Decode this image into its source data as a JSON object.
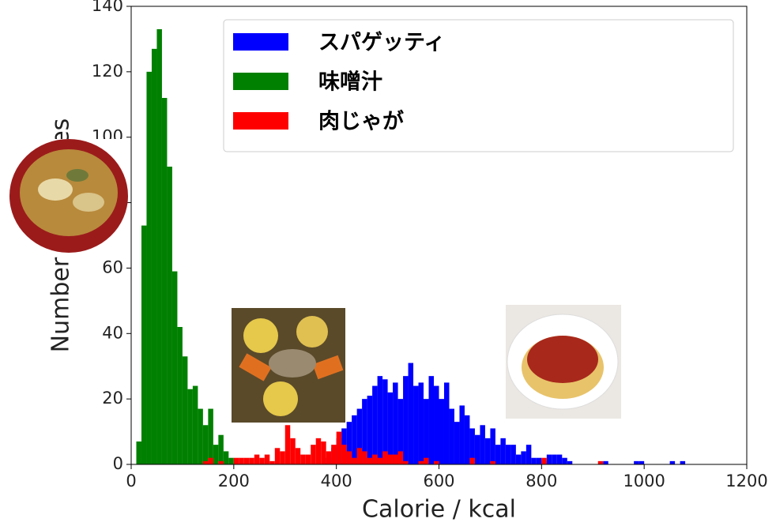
{
  "chart_data": {
    "type": "histogram",
    "x_label": "Calorie / kcal",
    "y_label": "Number of Samples",
    "bins": [
      0,
      10,
      20,
      30,
      40,
      50,
      60,
      70,
      80,
      90,
      100,
      110,
      120,
      130,
      140,
      150,
      160,
      170,
      180,
      190,
      200,
      210,
      220,
      230,
      240,
      250,
      260,
      270,
      280,
      290,
      300,
      310,
      320,
      330,
      340,
      350,
      360,
      370,
      380,
      390,
      400,
      410,
      420,
      430,
      440,
      450,
      460,
      470,
      480,
      490,
      500,
      510,
      520,
      530,
      540,
      550,
      560,
      570,
      580,
      590,
      600,
      610,
      620,
      630,
      640,
      650,
      660,
      670,
      680,
      690,
      700,
      710,
      720,
      730,
      740,
      750,
      760,
      770,
      780,
      790,
      800,
      810,
      820,
      830,
      840,
      850,
      860,
      870,
      880,
      890,
      900,
      910,
      920,
      930,
      940,
      950,
      960,
      970,
      980,
      990,
      1000,
      1010,
      1020,
      1030,
      1040,
      1050,
      1060,
      1070,
      1080,
      1090,
      1100
    ],
    "series": [
      {
        "name": "スパゲッティ",
        "color": "#0000ff",
        "values": [
          0,
          0,
          0,
          0,
          0,
          0,
          0,
          0,
          0,
          0,
          0,
          0,
          0,
          0,
          0,
          0,
          0,
          0,
          0,
          0,
          0,
          0,
          0,
          0,
          0,
          0,
          0,
          0,
          0,
          0,
          0,
          0,
          0,
          0,
          0,
          0,
          0,
          0,
          2,
          5,
          8,
          11,
          13,
          15,
          17,
          20,
          21,
          24,
          27,
          26,
          22,
          25,
          20,
          27,
          31,
          24,
          25,
          20,
          27,
          24,
          20,
          25,
          17,
          13,
          18,
          15,
          11,
          9,
          12,
          8,
          11,
          6,
          8,
          6,
          6,
          3,
          4,
          6,
          2,
          2,
          1,
          3,
          3,
          3,
          2,
          1,
          0,
          0,
          0,
          0,
          0,
          0,
          1,
          0,
          0,
          0,
          0,
          0,
          1,
          1,
          0,
          0,
          0,
          0,
          0,
          1,
          0,
          1,
          0,
          0
        ]
      },
      {
        "name": "味噌汁",
        "color": "#008000",
        "values": [
          0,
          7,
          73,
          120,
          127,
          133,
          112,
          91,
          59,
          42,
          33,
          23,
          24,
          17,
          12,
          17,
          6,
          9,
          4,
          2,
          0,
          0,
          0,
          0,
          0,
          0,
          0,
          0,
          0,
          0,
          0,
          0,
          0,
          0,
          0,
          0,
          0,
          0,
          0,
          0,
          0,
          0,
          0,
          0,
          0,
          0,
          0,
          0,
          0,
          0,
          0,
          0,
          0,
          0,
          0,
          0,
          0,
          0,
          0,
          0,
          0,
          0,
          0,
          0,
          0,
          0,
          0,
          0,
          0,
          0,
          0,
          0,
          0,
          0,
          0,
          0,
          0,
          0,
          0,
          0,
          0,
          0,
          0,
          0,
          0,
          0,
          0,
          0,
          0,
          0,
          0,
          0,
          0,
          0,
          0,
          0,
          0,
          0,
          0,
          0,
          0,
          0,
          0,
          0,
          0,
          0,
          0,
          0,
          0,
          0
        ]
      },
      {
        "name": "肉じゃが",
        "color": "#ff0000",
        "values": [
          0,
          0,
          0,
          0,
          0,
          0,
          0,
          0,
          0,
          0,
          0,
          0,
          0,
          0,
          1,
          2,
          0,
          1,
          0,
          0,
          2,
          2,
          2,
          2,
          3,
          2,
          3,
          1,
          5,
          4,
          12,
          8,
          5,
          3,
          3,
          6,
          8,
          7,
          4,
          6,
          10,
          6,
          4,
          2,
          5,
          4,
          2,
          3,
          2,
          4,
          3,
          3,
          4,
          1,
          0,
          0,
          1,
          2,
          0,
          1,
          0,
          0,
          0,
          0,
          0,
          0,
          2,
          0,
          0,
          0,
          1,
          0,
          0,
          0,
          0,
          0,
          0,
          0,
          0,
          0,
          2,
          0,
          0,
          0,
          0,
          0,
          0,
          0,
          0,
          0,
          0,
          1,
          0,
          0,
          0,
          0,
          0,
          0,
          0,
          0,
          0,
          0,
          0,
          0,
          0,
          0,
          0,
          0,
          0,
          0
        ]
      }
    ],
    "xlim": [
      0,
      1200
    ],
    "xticks": [
      0,
      200,
      400,
      600,
      800,
      1000,
      1200
    ],
    "ylim": [
      0,
      140
    ],
    "yticks": [
      0,
      20,
      40,
      60,
      80,
      100,
      120,
      140
    ],
    "legend": "upper right"
  }
}
